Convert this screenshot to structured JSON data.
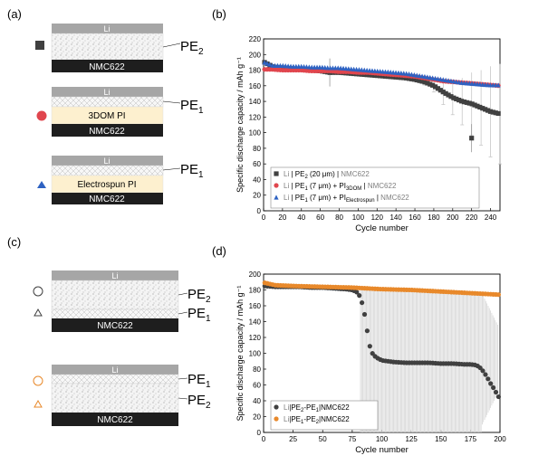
{
  "panels": {
    "a": {
      "label": "(a)",
      "stacks": [
        {
          "layers": [
            "Li",
            "",
            "NMC622"
          ],
          "labels": [
            "PE",
            "2"
          ],
          "marker": "square"
        },
        {
          "layers": [
            "Li",
            "",
            "3DOM PI",
            "NMC622"
          ],
          "labels": [
            "PE",
            "1"
          ],
          "marker": "circle"
        },
        {
          "layers": [
            "Li",
            "",
            "Electrospun PI",
            "NMC622"
          ],
          "labels": [
            "PE",
            "1"
          ],
          "marker": "triangle"
        }
      ]
    },
    "c": {
      "label": "(c)",
      "stacks": [
        {
          "layers": [
            "Li",
            "",
            "",
            "NMC622"
          ],
          "labels": [
            [
              "PE",
              "2"
            ],
            [
              "PE",
              "1"
            ]
          ],
          "markers": [
            "circle-open",
            "triangle-open"
          ]
        },
        {
          "layers": [
            "Li",
            "",
            "",
            "NMC622"
          ],
          "labels": [
            [
              "PE",
              "1"
            ],
            [
              "PE",
              "2"
            ]
          ],
          "markers": [
            "circle-open",
            "triangle-open"
          ]
        }
      ]
    }
  },
  "colors": {
    "black_series": "#404040",
    "red_series": "#e0464e",
    "blue_series": "#2e62c2",
    "orange_series": "#e8892b",
    "nmc_bar": "#1e1e1e",
    "li_bar": "#a6a6a6",
    "pi_fill": "#fdf0cf",
    "errorbar": "#c8c8c8",
    "grid_ticks": "#000000"
  },
  "chart_data": [
    {
      "panel_label": "(b)",
      "type": "scatter",
      "xlabel": "Cycle number",
      "ylabel": "Specific discharge capacity / mAh g⁻¹",
      "xlim": [
        0,
        250
      ],
      "ylim": [
        0,
        220
      ],
      "xticks": [
        0,
        20,
        40,
        60,
        80,
        100,
        120,
        140,
        160,
        180,
        200,
        220,
        240
      ],
      "yticks": [
        0,
        20,
        40,
        60,
        80,
        100,
        120,
        140,
        160,
        180,
        200,
        220
      ],
      "legend_position": "bottom-left",
      "legend": [
        {
          "marker": "square",
          "parts": [
            "Li",
            " | PE",
            "2",
            " (20 μm) | ",
            "NMC622"
          ]
        },
        {
          "marker": "circle",
          "parts": [
            "Li",
            " | PE",
            "1",
            " (7 μm) + PI",
            "3DOM",
            " | ",
            "NMC622"
          ]
        },
        {
          "marker": "triangle",
          "parts": [
            "Li",
            " | PE",
            "1",
            " (7 μm) + PI",
            "Electrospun",
            " | ",
            "NMC622"
          ]
        }
      ],
      "series": [
        {
          "marker": "square",
          "x": [
            1,
            10,
            20,
            30,
            40,
            50,
            60,
            70,
            80,
            90,
            100,
            110,
            120,
            130,
            140,
            150,
            160,
            170,
            180,
            190,
            200,
            210,
            220,
            230,
            240,
            250
          ],
          "y": [
            190,
            184,
            183,
            182,
            181,
            180,
            179,
            177,
            177,
            176,
            175,
            174,
            173,
            172,
            171,
            170,
            168,
            165,
            160,
            152,
            145,
            140,
            137,
            132,
            127,
            124
          ],
          "err": [
            0,
            0,
            0,
            0,
            0,
            0,
            0,
            0,
            0,
            0,
            0,
            0,
            0,
            0,
            0,
            0,
            2,
            4,
            8,
            16,
            22,
            30,
            40,
            48,
            58,
            64
          ],
          "outliers": [
            [
              220,
              93
            ],
            [
              70,
              177
            ]
          ]
        },
        {
          "marker": "circle",
          "x": [
            1,
            10,
            20,
            30,
            40,
            50,
            60,
            70,
            80,
            90,
            100,
            110,
            120,
            130,
            140,
            150,
            160,
            170,
            180,
            190,
            200,
            210,
            220,
            230,
            240,
            250
          ],
          "y": [
            181,
            181,
            180,
            180,
            180,
            179,
            179,
            179,
            178,
            178,
            177,
            177,
            176,
            175,
            174,
            173,
            172,
            170,
            168,
            166,
            165,
            164,
            163,
            162,
            161,
            160
          ]
        },
        {
          "marker": "triangle",
          "x": [
            1,
            10,
            20,
            30,
            40,
            50,
            60,
            70,
            80,
            90,
            100,
            110,
            120,
            130,
            140,
            150,
            160,
            170,
            180,
            190,
            200,
            210,
            220,
            230,
            240,
            250
          ],
          "y": [
            190,
            186,
            186,
            185,
            185,
            184,
            184,
            183,
            183,
            182,
            181,
            180,
            179,
            178,
            177,
            176,
            174,
            172,
            170,
            168,
            166,
            164,
            163,
            162,
            161,
            161
          ]
        }
      ]
    },
    {
      "panel_label": "(d)",
      "type": "scatter",
      "xlabel": "Cycle number",
      "ylabel": "Specific discharge capacity / mAh g⁻¹",
      "xlim": [
        0,
        200
      ],
      "ylim": [
        0,
        200
      ],
      "xticks": [
        0,
        25,
        50,
        75,
        100,
        125,
        150,
        175,
        200
      ],
      "yticks": [
        0,
        20,
        40,
        60,
        80,
        100,
        120,
        140,
        160,
        180,
        200
      ],
      "legend_position": "bottom-left",
      "legend": [
        {
          "marker": "circle",
          "parts": [
            "Li",
            "|PE",
            "2",
            "-PE",
            "1",
            "|NMC622"
          ]
        },
        {
          "marker": "circle-orange",
          "parts": [
            "Li",
            "|PE",
            "1",
            "-PE",
            "2",
            "|NMC622"
          ]
        }
      ],
      "series": [
        {
          "marker": "circle",
          "x": [
            1,
            10,
            20,
            30,
            40,
            50,
            60,
            70,
            75,
            78,
            80,
            82,
            84,
            86,
            88,
            90,
            92,
            95,
            100,
            110,
            120,
            130,
            140,
            150,
            160,
            170,
            175,
            180,
            183,
            186,
            189,
            192,
            195,
            198,
            200
          ],
          "y": [
            185,
            184,
            184,
            184,
            183,
            183,
            182,
            181,
            180,
            178,
            176,
            170,
            160,
            145,
            125,
            108,
            100,
            95,
            91,
            89,
            88,
            88,
            88,
            87,
            87,
            86,
            86,
            85,
            82,
            77,
            70,
            62,
            55,
            47,
            42
          ],
          "err_range": [
            [
              82,
              0,
              180
            ],
            [
              90,
              0,
              180
            ],
            [
              100,
              0,
              180
            ],
            [
              120,
              0,
              180
            ],
            [
              150,
              0,
              180
            ],
            [
              170,
              0,
              180
            ],
            [
              186,
              0,
              180
            ],
            [
              195,
              10,
              135
            ]
          ]
        },
        {
          "marker": "circle-orange",
          "x": [
            1,
            10,
            25,
            50,
            75,
            100,
            125,
            150,
            175,
            200
          ],
          "y": [
            189,
            186,
            185,
            184,
            183,
            181,
            180,
            178,
            176,
            174
          ]
        }
      ]
    }
  ]
}
